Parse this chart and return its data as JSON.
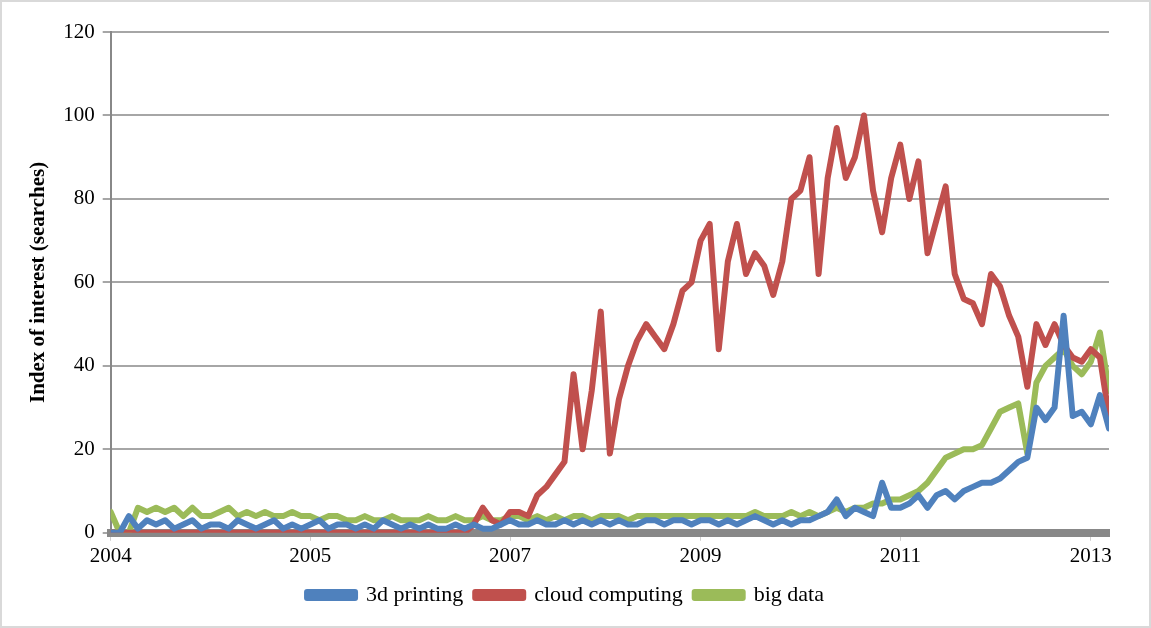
{
  "chart_data": {
    "type": "line",
    "ylabel": "Index of interest (searches)",
    "x": [
      "2004-01",
      "2004-02",
      "2004-03",
      "2004-04",
      "2004-05",
      "2004-06",
      "2004-07",
      "2004-08",
      "2004-09",
      "2004-10",
      "2004-11",
      "2004-12",
      "2005-01",
      "2005-02",
      "2005-03",
      "2005-04",
      "2005-05",
      "2005-06",
      "2005-07",
      "2005-08",
      "2005-09",
      "2005-10",
      "2005-11",
      "2005-12",
      "2006-01",
      "2006-02",
      "2006-03",
      "2006-04",
      "2006-05",
      "2006-06",
      "2006-07",
      "2006-08",
      "2006-09",
      "2006-10",
      "2006-11",
      "2006-12",
      "2007-01",
      "2007-02",
      "2007-03",
      "2007-04",
      "2007-05",
      "2007-06",
      "2007-07",
      "2007-08",
      "2007-09",
      "2007-10",
      "2007-11",
      "2007-12",
      "2008-01",
      "2008-02",
      "2008-03",
      "2008-04",
      "2008-05",
      "2008-06",
      "2008-07",
      "2008-08",
      "2008-09",
      "2008-10",
      "2008-11",
      "2008-12",
      "2009-01",
      "2009-02",
      "2009-03",
      "2009-04",
      "2009-05",
      "2009-06",
      "2009-07",
      "2009-08",
      "2009-09",
      "2009-10",
      "2009-11",
      "2009-12",
      "2010-01",
      "2010-02",
      "2010-03",
      "2010-04",
      "2010-05",
      "2010-06",
      "2010-07",
      "2010-08",
      "2010-09",
      "2010-10",
      "2010-11",
      "2010-12",
      "2011-01",
      "2011-02",
      "2011-03",
      "2011-04",
      "2011-05",
      "2011-06",
      "2011-07",
      "2011-08",
      "2011-09",
      "2011-10",
      "2011-11",
      "2011-12",
      "2012-01",
      "2012-02",
      "2012-03",
      "2012-04",
      "2012-05",
      "2012-06",
      "2012-07",
      "2012-08",
      "2012-09",
      "2012-10",
      "2012-11",
      "2012-12",
      "2013-01",
      "2013-02",
      "2013-03"
    ],
    "series": [
      {
        "name": "3d printing",
        "color": "#4f81bd",
        "values": [
          0,
          0,
          4,
          1,
          3,
          2,
          3,
          1,
          2,
          3,
          1,
          2,
          2,
          1,
          3,
          2,
          1,
          2,
          3,
          1,
          2,
          1,
          2,
          3,
          1,
          2,
          2,
          1,
          2,
          1,
          3,
          2,
          1,
          2,
          1,
          2,
          1,
          1,
          2,
          1,
          2,
          1,
          1,
          2,
          3,
          2,
          2,
          3,
          2,
          2,
          3,
          2,
          3,
          2,
          3,
          2,
          3,
          2,
          2,
          3,
          3,
          2,
          3,
          3,
          2,
          3,
          3,
          2,
          3,
          2,
          3,
          4,
          3,
          2,
          3,
          2,
          3,
          3,
          4,
          5,
          8,
          4,
          6,
          5,
          4,
          12,
          6,
          6,
          7,
          9,
          6,
          9,
          10,
          8,
          10,
          11,
          12,
          12,
          13,
          15,
          17,
          18,
          30,
          27,
          30,
          52,
          28,
          29,
          26,
          33,
          25
        ]
      },
      {
        "name": "cloud computing",
        "color": "#c0504d",
        "values": [
          0,
          0,
          0,
          0,
          0,
          0,
          0,
          0,
          0,
          0,
          0,
          0,
          0,
          0,
          0,
          0,
          0,
          0,
          0,
          0,
          0,
          0,
          0,
          0,
          0,
          0,
          0,
          0,
          0,
          0,
          0,
          0,
          0,
          0,
          0,
          0,
          0,
          0,
          0,
          0,
          2,
          6,
          3,
          2,
          5,
          5,
          4,
          9,
          11,
          14,
          17,
          38,
          20,
          34,
          53,
          19,
          32,
          40,
          46,
          50,
          47,
          44,
          50,
          58,
          60,
          70,
          74,
          44,
          65,
          74,
          62,
          67,
          64,
          57,
          65,
          80,
          82,
          90,
          62,
          85,
          97,
          85,
          90,
          100,
          82,
          72,
          85,
          93,
          80,
          89,
          67,
          75,
          83,
          62,
          56,
          55,
          50,
          62,
          59,
          52,
          47,
          35,
          50,
          45,
          50,
          45,
          42,
          41,
          44,
          42,
          28
        ]
      },
      {
        "name": "big data",
        "color": "#9bbb59",
        "values": [
          5,
          0,
          0,
          6,
          5,
          6,
          5,
          6,
          4,
          6,
          4,
          4,
          5,
          6,
          4,
          5,
          4,
          5,
          4,
          4,
          5,
          4,
          4,
          3,
          4,
          4,
          3,
          3,
          4,
          3,
          3,
          4,
          3,
          3,
          3,
          4,
          3,
          3,
          4,
          3,
          3,
          4,
          3,
          3,
          4,
          4,
          3,
          4,
          3,
          4,
          3,
          4,
          4,
          3,
          4,
          4,
          4,
          3,
          4,
          4,
          4,
          4,
          4,
          4,
          4,
          4,
          4,
          4,
          4,
          4,
          4,
          5,
          4,
          4,
          4,
          5,
          4,
          5,
          4,
          5,
          6,
          5,
          6,
          6,
          7,
          7,
          8,
          8,
          9,
          10,
          12,
          15,
          18,
          19,
          20,
          20,
          21,
          25,
          29,
          30,
          31,
          19,
          36,
          40,
          42,
          44,
          40,
          38,
          41,
          48,
          34
        ]
      }
    ],
    "xlim": [
      "2004-01",
      "2013-03"
    ],
    "xticks": [
      {
        "value": "2004-01",
        "label": "2004"
      },
      {
        "value": "2005-11",
        "label": "2005"
      },
      {
        "value": "2007-09",
        "label": "2007"
      },
      {
        "value": "2009-06",
        "label": "2009"
      },
      {
        "value": "2011-04",
        "label": "2011"
      },
      {
        "value": "2013-01",
        "label": "2013"
      }
    ],
    "ylim": [
      0,
      120
    ],
    "yticks": [
      0,
      20,
      40,
      60,
      80,
      100,
      120
    ],
    "grid": "y",
    "legend": "bottom",
    "marker": "none",
    "line_style": "solid"
  }
}
